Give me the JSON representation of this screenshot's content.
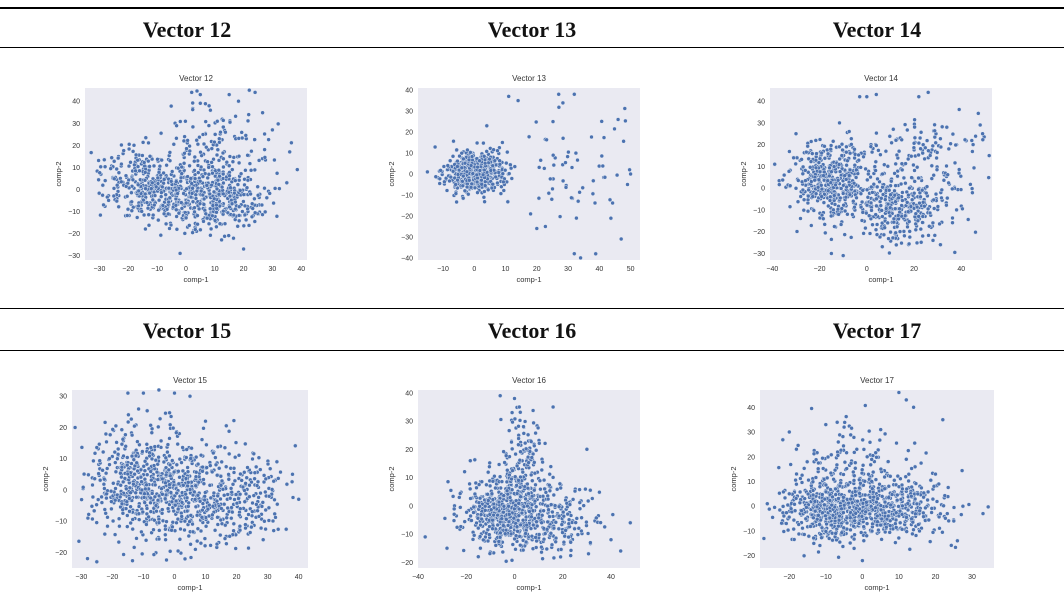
{
  "table": {
    "headers_row1": [
      "Vector 12",
      "Vector 13",
      "Vector 14"
    ],
    "headers_row2": [
      "Vector 15",
      "Vector 16",
      "Vector 17"
    ]
  },
  "style": {
    "panel_bg": "#eaeaf2",
    "point_fill": "#4c72b0",
    "point_edge": "#ffffff",
    "text": "#333333"
  },
  "chart_data": [
    {
      "type": "scatter",
      "title": "Vector 12",
      "xlabel": "comp-1",
      "ylabel": "comp-2",
      "xlim": [
        -35,
        42
      ],
      "ylim": [
        -32,
        46
      ],
      "xticks": [
        -30,
        -20,
        -10,
        0,
        10,
        20,
        30,
        40
      ],
      "yticks": [
        -30,
        -20,
        -10,
        0,
        10,
        20,
        30,
        40
      ],
      "grid": false,
      "clusters": [
        {
          "center": [
            -8,
            0
          ],
          "spread": [
            9,
            7
          ],
          "count": 420
        },
        {
          "center": [
            12,
            -5
          ],
          "spread": [
            8,
            7
          ],
          "count": 320
        },
        {
          "center": [
            10,
            20
          ],
          "spread": [
            10,
            9
          ],
          "count": 150
        },
        {
          "center": [
            -22,
            10
          ],
          "spread": [
            6,
            7
          ],
          "count": 50
        }
      ],
      "points": [
        [
          2,
          44
        ],
        [
          22,
          45
        ],
        [
          24,
          44
        ],
        [
          15,
          43
        ],
        [
          -28,
          4
        ],
        [
          36,
          17
        ],
        [
          35,
          3
        ],
        [
          20,
          -27
        ],
        [
          -2,
          -29
        ],
        [
          30,
          27
        ],
        [
          -18,
          20
        ],
        [
          5,
          43
        ]
      ]
    },
    {
      "type": "scatter",
      "title": "Vector 13",
      "xlabel": "comp-1",
      "ylabel": "comp-2",
      "xlim": [
        -18,
        53
      ],
      "ylim": [
        -41,
        41
      ],
      "xticks": [
        -10,
        0,
        10,
        20,
        30,
        40,
        50
      ],
      "yticks": [
        -40,
        -30,
        -20,
        -10,
        0,
        10,
        20,
        30,
        40
      ],
      "grid": false,
      "clusters": [
        {
          "center": [
            0,
            1
          ],
          "spread": [
            4.5,
            4.5
          ],
          "count": 640
        },
        {
          "center": [
            33,
            2
          ],
          "spread": [
            9,
            15
          ],
          "count": 65
        }
      ],
      "points": [
        [
          -15,
          1
        ],
        [
          11,
          37
        ],
        [
          14,
          35
        ],
        [
          27,
          38
        ],
        [
          32,
          38
        ],
        [
          32,
          -38
        ],
        [
          34,
          -40
        ],
        [
          47,
          -31
        ],
        [
          46,
          26
        ],
        [
          50,
          0
        ],
        [
          49,
          -5
        ],
        [
          18,
          -19
        ],
        [
          20,
          -26
        ],
        [
          9,
          15
        ],
        [
          4,
          23
        ]
      ]
    },
    {
      "type": "scatter",
      "title": "Vector 14",
      "xlabel": "comp-1",
      "ylabel": "comp-2",
      "xlim": [
        -41,
        53
      ],
      "ylim": [
        -33,
        46
      ],
      "xticks": [
        -40,
        -20,
        0,
        20,
        40
      ],
      "yticks": [
        -30,
        -20,
        -10,
        0,
        10,
        20,
        30,
        40
      ],
      "grid": false,
      "clusters": [
        {
          "center": [
            -15,
            3
          ],
          "spread": [
            9,
            9
          ],
          "count": 480
        },
        {
          "center": [
            15,
            -10
          ],
          "spread": [
            10,
            8
          ],
          "count": 330
        },
        {
          "center": [
            25,
            15
          ],
          "spread": [
            12,
            10
          ],
          "count": 140
        }
      ],
      "points": [
        [
          -39,
          11
        ],
        [
          -35,
          6
        ],
        [
          -10,
          -31
        ],
        [
          -15,
          -30
        ],
        [
          -3,
          42
        ],
        [
          0,
          42
        ],
        [
          4,
          43
        ],
        [
          22,
          42
        ],
        [
          26,
          44
        ],
        [
          49,
          25
        ],
        [
          48,
          29
        ],
        [
          45,
          20
        ],
        [
          28,
          -24
        ],
        [
          38,
          -10
        ],
        [
          -30,
          25
        ]
      ]
    },
    {
      "type": "scatter",
      "title": "Vector 15",
      "xlabel": "comp-1",
      "ylabel": "comp-2",
      "xlim": [
        -33,
        43
      ],
      "ylim": [
        -25,
        32
      ],
      "xticks": [
        -30,
        -20,
        -10,
        0,
        10,
        20,
        30,
        40
      ],
      "yticks": [
        -20,
        -10,
        0,
        10,
        20,
        30
      ],
      "grid": false,
      "clusters": [
        {
          "center": [
            -10,
            3
          ],
          "spread": [
            9,
            9
          ],
          "count": 520
        },
        {
          "center": [
            8,
            -2
          ],
          "spread": [
            9,
            8
          ],
          "count": 380
        },
        {
          "center": [
            25,
            -3
          ],
          "spread": [
            6,
            7
          ],
          "count": 120
        }
      ],
      "points": [
        [
          -32,
          20
        ],
        [
          -28,
          -22
        ],
        [
          -15,
          31
        ],
        [
          -10,
          31
        ],
        [
          -5,
          32
        ],
        [
          0,
          31
        ],
        [
          5,
          30
        ],
        [
          40,
          -3
        ],
        [
          38,
          5
        ],
        [
          33,
          9
        ],
        [
          -25,
          -23
        ],
        [
          10,
          22
        ]
      ]
    },
    {
      "type": "scatter",
      "title": "Vector 16",
      "xlabel": "comp-1",
      "ylabel": "comp-2",
      "xlim": [
        -40,
        52
      ],
      "ylim": [
        -22,
        41
      ],
      "xticks": [
        -40,
        -20,
        0,
        20,
        40
      ],
      "yticks": [
        -20,
        -10,
        0,
        10,
        20,
        30,
        40
      ],
      "grid": false,
      "clusters": [
        {
          "center": [
            -5,
            -2
          ],
          "spread": [
            8,
            6
          ],
          "count": 520
        },
        {
          "center": [
            3,
            15
          ],
          "spread": [
            5,
            9
          ],
          "count": 140
        },
        {
          "center": [
            15,
            -5
          ],
          "spread": [
            10,
            6
          ],
          "count": 260
        }
      ],
      "points": [
        [
          -37,
          -11
        ],
        [
          0,
          38
        ],
        [
          2,
          35
        ],
        [
          -1,
          33
        ],
        [
          16,
          35
        ],
        [
          48,
          -6
        ],
        [
          44,
          -16
        ],
        [
          40,
          -12
        ],
        [
          -28,
          -15
        ],
        [
          -25,
          -3
        ],
        [
          30,
          20
        ],
        [
          -15,
          -18
        ]
      ]
    },
    {
      "type": "scatter",
      "title": "Vector 17",
      "xlabel": "comp-1",
      "ylabel": "comp-2",
      "xlim": [
        -28,
        36
      ],
      "ylim": [
        -25,
        47
      ],
      "xticks": [
        -20,
        -10,
        0,
        10,
        20,
        30
      ],
      "yticks": [
        -20,
        -10,
        0,
        10,
        20,
        30,
        40
      ],
      "grid": false,
      "clusters": [
        {
          "center": [
            -8,
            -2
          ],
          "spread": [
            7,
            6
          ],
          "count": 520
        },
        {
          "center": [
            8,
            0
          ],
          "spread": [
            8,
            6
          ],
          "count": 420
        },
        {
          "center": [
            -3,
            18
          ],
          "spread": [
            9,
            7
          ],
          "count": 120
        }
      ],
      "points": [
        [
          10,
          46
        ],
        [
          12,
          43
        ],
        [
          14,
          40
        ],
        [
          22,
          35
        ],
        [
          33,
          -3
        ],
        [
          26,
          -14
        ],
        [
          25,
          -6
        ],
        [
          -26,
          1
        ],
        [
          -20,
          5
        ],
        [
          -10,
          33
        ],
        [
          -5,
          32
        ],
        [
          5,
          31
        ],
        [
          0,
          -22
        ],
        [
          -20,
          30
        ],
        [
          20,
          13
        ]
      ]
    }
  ]
}
